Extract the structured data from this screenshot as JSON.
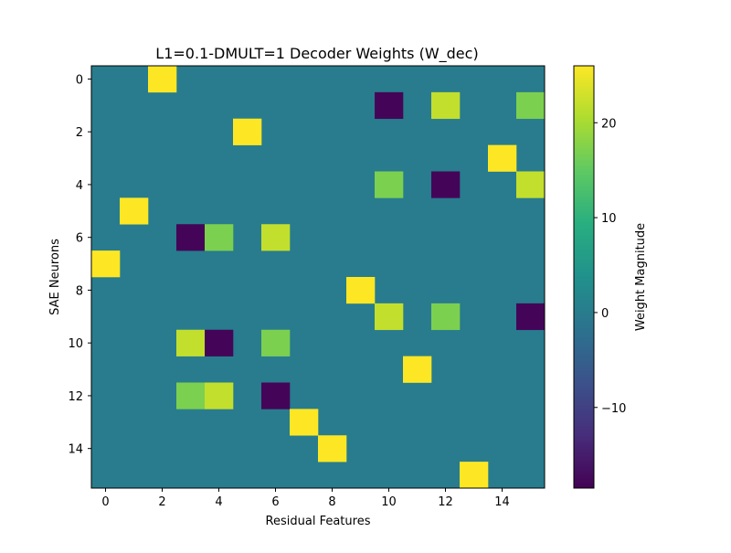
{
  "chart_data": {
    "type": "heatmap",
    "title": "L1=0.1-DMULT=1 Decoder Weights (W_dec)",
    "xlabel": "Residual Features",
    "ylabel": "SAE Neurons",
    "colorbar_label": "Weight Magnitude",
    "colormap": "viridis",
    "n_rows": 16,
    "n_cols": 16,
    "vmin": -18.5,
    "vmax": 26,
    "background_value": 0,
    "x_ticks": [
      0,
      2,
      4,
      6,
      8,
      10,
      12,
      14
    ],
    "x_tick_labels": [
      "0",
      "2",
      "4",
      "6",
      "8",
      "10",
      "12",
      "14"
    ],
    "y_ticks": [
      0,
      2,
      4,
      6,
      8,
      10,
      12,
      14
    ],
    "y_tick_labels": [
      "0",
      "2",
      "4",
      "6",
      "8",
      "10",
      "12",
      "14"
    ],
    "colorbar_ticks": [
      20,
      10,
      0,
      -10
    ],
    "colorbar_tick_labels": [
      "20",
      "10",
      "0",
      "−10"
    ],
    "cells": [
      {
        "row": 0,
        "col": 2,
        "value": 26
      },
      {
        "row": 1,
        "col": 10,
        "value": -18
      },
      {
        "row": 1,
        "col": 12,
        "value": 22
      },
      {
        "row": 1,
        "col": 15,
        "value": 17
      },
      {
        "row": 2,
        "col": 5,
        "value": 26
      },
      {
        "row": 3,
        "col": 14,
        "value": 26
      },
      {
        "row": 4,
        "col": 10,
        "value": 17
      },
      {
        "row": 4,
        "col": 12,
        "value": -18
      },
      {
        "row": 4,
        "col": 15,
        "value": 22
      },
      {
        "row": 5,
        "col": 1,
        "value": 26
      },
      {
        "row": 6,
        "col": 3,
        "value": -18
      },
      {
        "row": 6,
        "col": 4,
        "value": 17
      },
      {
        "row": 6,
        "col": 6,
        "value": 22
      },
      {
        "row": 7,
        "col": 0,
        "value": 26
      },
      {
        "row": 8,
        "col": 9,
        "value": 26
      },
      {
        "row": 9,
        "col": 10,
        "value": 22
      },
      {
        "row": 9,
        "col": 12,
        "value": 17
      },
      {
        "row": 9,
        "col": 15,
        "value": -18
      },
      {
        "row": 10,
        "col": 3,
        "value": 22
      },
      {
        "row": 10,
        "col": 4,
        "value": -18
      },
      {
        "row": 10,
        "col": 6,
        "value": 17
      },
      {
        "row": 11,
        "col": 11,
        "value": 26
      },
      {
        "row": 12,
        "col": 3,
        "value": 17
      },
      {
        "row": 12,
        "col": 4,
        "value": 22
      },
      {
        "row": 12,
        "col": 6,
        "value": -18
      },
      {
        "row": 13,
        "col": 7,
        "value": 26
      },
      {
        "row": 14,
        "col": 8,
        "value": 26
      },
      {
        "row": 15,
        "col": 13,
        "value": 26
      }
    ]
  }
}
